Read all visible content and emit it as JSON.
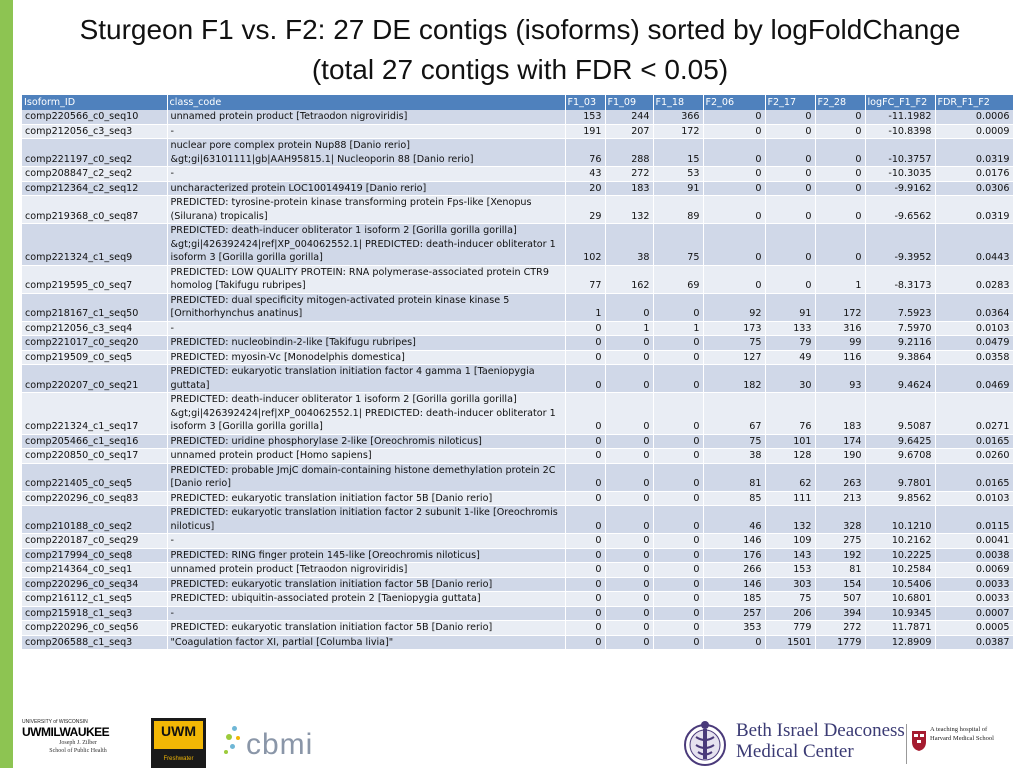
{
  "title_line1": "Sturgeon F1 vs. F2: 27 DE contigs (isoforms) sorted by logFoldChange",
  "title_line2": "(total 27 contigs with FDR < 0.05)",
  "columns": [
    "Isoform_ID",
    "class_code",
    "F1_03",
    "F1_09",
    "F1_18",
    "F2_06",
    "F2_17",
    "F2_28",
    "logFC_F1_F2",
    "FDR_F1_F2"
  ],
  "rows": [
    [
      "comp220566_c0_seq10",
      "unnamed protein product [Tetraodon nigroviridis]",
      "153",
      "244",
      "366",
      "0",
      "0",
      "0",
      "-11.1982",
      "0.0006"
    ],
    [
      "comp212056_c3_seq3",
      "-",
      "191",
      "207",
      "172",
      "0",
      "0",
      "0",
      "-10.8398",
      "0.0009"
    ],
    [
      "comp221197_c0_seq2",
      "nuclear pore complex protein Nup88 [Danio rerio] &gt;gi|63101111|gb|AAH95815.1| Nucleoporin 88 [Danio rerio]",
      "76",
      "288",
      "15",
      "0",
      "0",
      "0",
      "-10.3757",
      "0.0319"
    ],
    [
      "comp208847_c2_seq2",
      "-",
      "43",
      "272",
      "53",
      "0",
      "0",
      "0",
      "-10.3035",
      "0.0176"
    ],
    [
      "comp212364_c2_seq12",
      "uncharacterized protein LOC100149419 [Danio rerio]",
      "20",
      "183",
      "91",
      "0",
      "0",
      "0",
      "-9.9162",
      "0.0306"
    ],
    [
      "comp219368_c0_seq87",
      "PREDICTED: tyrosine-protein kinase transforming protein Fps-like [Xenopus (Silurana) tropicalis]",
      "29",
      "132",
      "89",
      "0",
      "0",
      "0",
      "-9.6562",
      "0.0319"
    ],
    [
      "comp221324_c1_seq9",
      "PREDICTED: death-inducer obliterator 1 isoform 2 [Gorilla gorilla gorilla] &gt;gi|426392424|ref|XP_004062552.1| PREDICTED: death-inducer obliterator 1 isoform 3 [Gorilla gorilla gorilla]",
      "102",
      "38",
      "75",
      "0",
      "0",
      "0",
      "-9.3952",
      "0.0443"
    ],
    [
      "comp219595_c0_seq7",
      "PREDICTED: LOW QUALITY PROTEIN: RNA polymerase-associated protein CTR9 homolog [Takifugu rubripes]",
      "77",
      "162",
      "69",
      "0",
      "0",
      "1",
      "-8.3173",
      "0.0283"
    ],
    [
      "comp218167_c1_seq50",
      "PREDICTED: dual specificity mitogen-activated protein kinase kinase 5 [Ornithorhynchus anatinus]",
      "1",
      "0",
      "0",
      "92",
      "91",
      "172",
      "7.5923",
      "0.0364"
    ],
    [
      "comp212056_c3_seq4",
      "-",
      "0",
      "1",
      "1",
      "173",
      "133",
      "316",
      "7.5970",
      "0.0103"
    ],
    [
      "comp221017_c0_seq20",
      "PREDICTED: nucleobindin-2-like [Takifugu rubripes]",
      "0",
      "0",
      "0",
      "75",
      "79",
      "99",
      "9.2116",
      "0.0479"
    ],
    [
      "comp219509_c0_seq5",
      "PREDICTED: myosin-Vc [Monodelphis domestica]",
      "0",
      "0",
      "0",
      "127",
      "49",
      "116",
      "9.3864",
      "0.0358"
    ],
    [
      "comp220207_c0_seq21",
      "PREDICTED: eukaryotic translation initiation factor 4 gamma 1 [Taeniopygia guttata]",
      "0",
      "0",
      "0",
      "182",
      "30",
      "93",
      "9.4624",
      "0.0469"
    ],
    [
      "comp221324_c1_seq17",
      "PREDICTED: death-inducer obliterator 1 isoform 2 [Gorilla gorilla gorilla] &gt;gi|426392424|ref|XP_004062552.1| PREDICTED: death-inducer obliterator 1 isoform 3 [Gorilla gorilla gorilla]",
      "0",
      "0",
      "0",
      "67",
      "76",
      "183",
      "9.5087",
      "0.0271"
    ],
    [
      "comp205466_c1_seq16",
      "PREDICTED: uridine phosphorylase 2-like [Oreochromis niloticus]",
      "0",
      "0",
      "0",
      "75",
      "101",
      "174",
      "9.6425",
      "0.0165"
    ],
    [
      "comp220850_c0_seq17",
      "unnamed protein product [Homo sapiens]",
      "0",
      "0",
      "0",
      "38",
      "128",
      "190",
      "9.6708",
      "0.0260"
    ],
    [
      "comp221405_c0_seq5",
      "PREDICTED: probable JmjC domain-containing histone demethylation protein 2C [Danio rerio]",
      "0",
      "0",
      "0",
      "81",
      "62",
      "263",
      "9.7801",
      "0.0165"
    ],
    [
      "comp220296_c0_seq83",
      "PREDICTED: eukaryotic translation initiation factor 5B [Danio rerio]",
      "0",
      "0",
      "0",
      "85",
      "111",
      "213",
      "9.8562",
      "0.0103"
    ],
    [
      "comp210188_c0_seq2",
      "PREDICTED: eukaryotic translation initiation factor 2 subunit 1-like [Oreochromis niloticus]",
      "0",
      "0",
      "0",
      "46",
      "132",
      "328",
      "10.1210",
      "0.0115"
    ],
    [
      "comp220187_c0_seq29",
      "-",
      "0",
      "0",
      "0",
      "146",
      "109",
      "275",
      "10.2162",
      "0.0041"
    ],
    [
      "comp217994_c0_seq8",
      "PREDICTED: RING finger protein 145-like [Oreochromis niloticus]",
      "0",
      "0",
      "0",
      "176",
      "143",
      "192",
      "10.2225",
      "0.0038"
    ],
    [
      "comp214364_c0_seq1",
      "unnamed protein product [Tetraodon nigroviridis]",
      "0",
      "0",
      "0",
      "266",
      "153",
      "81",
      "10.2584",
      "0.0069"
    ],
    [
      "comp220296_c0_seq34",
      "PREDICTED: eukaryotic translation initiation factor 5B [Danio rerio]",
      "0",
      "0",
      "0",
      "146",
      "303",
      "154",
      "10.5406",
      "0.0033"
    ],
    [
      "comp216112_c1_seq5",
      "PREDICTED: ubiquitin-associated protein 2 [Taeniopygia guttata]",
      "0",
      "0",
      "0",
      "185",
      "75",
      "507",
      "10.6801",
      "0.0033"
    ],
    [
      "comp215918_c1_seq3",
      "-",
      "0",
      "0",
      "0",
      "257",
      "206",
      "394",
      "10.9345",
      "0.0007"
    ],
    [
      "comp220296_c0_seq56",
      "PREDICTED: eukaryotic translation initiation factor 5B [Danio rerio]",
      "0",
      "0",
      "0",
      "353",
      "779",
      "272",
      "11.7871",
      "0.0005"
    ],
    [
      "comp206588_c1_seq3",
      "\"Coagulation factor XI, partial [Columba livia]\"",
      "0",
      "0",
      "0",
      "0",
      "1501",
      "1779",
      "12.8909",
      "0.0387"
    ]
  ],
  "footer": {
    "uwm_small": "UNIVERSITY of WISCONSIN",
    "uwm_big": "UWMILWAUKEE",
    "uwm_sub1": "Joseph J. Zilber",
    "uwm_sub2": "School of Public Health",
    "uwm_logo": "UWM",
    "uwm_fresh": "Freshwater",
    "cbmi": "cbmi",
    "bidmc_line1": "Beth Israel Deaconess",
    "bidmc_line2": "Medical Center",
    "hms_line1": "A teaching hospital of",
    "hms_line2": "Harvard Medical School"
  },
  "colors": {
    "header": "#4f81bd",
    "row_dark": "#d0d8e8",
    "row_light": "#e9edf4",
    "accent_green": "#8dc452"
  }
}
